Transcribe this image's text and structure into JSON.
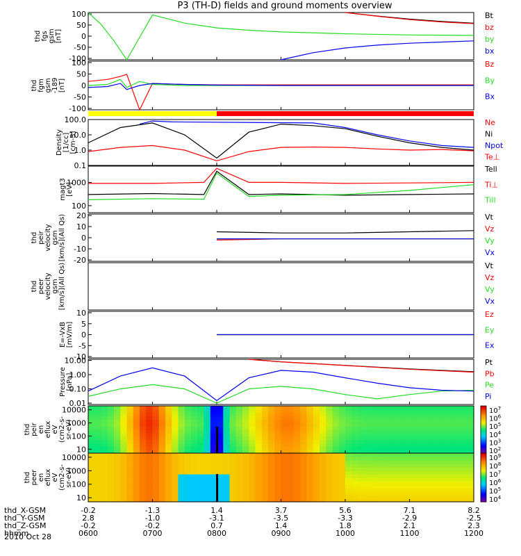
{
  "title": "P3 (TH-D) fields and ground moments overview",
  "date": "2010 Oct 28",
  "colors": {
    "black": "#000000",
    "red": "#ff0000",
    "green": "#22dd22",
    "blue": "#0000ee",
    "yellow": "#ffff00"
  },
  "ephemeris": {
    "row_labels": [
      "thd_X-GSM",
      "thd_Y-GSM",
      "thd_Z-GSM",
      "hhmm"
    ],
    "columns": [
      [
        "-0.2",
        "2.8",
        "-0.2",
        "0600"
      ],
      [
        "-1.3",
        "-1.0",
        "-0.2",
        "0700"
      ],
      [
        "1.4",
        "-3.1",
        "0.7",
        "0800"
      ],
      [
        "3.7",
        "-3.5",
        "1.4",
        "0900"
      ],
      [
        "5.6",
        "-3.3",
        "1.8",
        "1000"
      ],
      [
        "7.1",
        "-2.9",
        "2.1",
        "1100"
      ],
      [
        "8.2",
        "-2.5",
        "2.3",
        "1200"
      ]
    ]
  },
  "chart_data": [
    {
      "type": "line",
      "panel": "fgs",
      "ylabel_lines": [
        "thd",
        "fgs",
        "gsm",
        "[nT]"
      ],
      "y_ticks": [
        "100",
        "50",
        "0",
        "-50",
        "-100"
      ],
      "ylim": [
        -100,
        100
      ],
      "x_range_hours": [
        6,
        12
      ],
      "legend": [
        {
          "name": "Bt",
          "color": "#000000"
        },
        {
          "name": "bz",
          "color": "#ff0000"
        },
        {
          "name": "by",
          "color": "#22dd22"
        },
        {
          "name": "bx",
          "color": "#0000ee"
        }
      ],
      "series": [
        {
          "name": "Bt",
          "x": [
            10.0,
            10.5,
            11.0,
            11.5,
            12.0
          ],
          "values": [
            100,
            85,
            72,
            62,
            55
          ]
        },
        {
          "name": "bz",
          "x": [
            10.0,
            10.5,
            11.0,
            11.5,
            12.0
          ],
          "values": [
            100,
            84,
            70,
            60,
            53
          ]
        },
        {
          "name": "by",
          "x": [
            6.0,
            6.2,
            6.4,
            6.6,
            7.0,
            7.5,
            8.0,
            8.5,
            9.0,
            10.0,
            11.0,
            12.0
          ],
          "values": [
            100,
            50,
            -20,
            -100,
            90,
            55,
            35,
            25,
            18,
            10,
            5,
            3
          ]
        },
        {
          "name": "bx",
          "x": [
            9.0,
            9.5,
            10.0,
            10.5,
            11.0,
            11.5,
            12.0
          ],
          "values": [
            -100,
            -70,
            -50,
            -38,
            -30,
            -25,
            -20
          ]
        }
      ]
    },
    {
      "type": "line",
      "panel": "fgm",
      "ylabel_lines": [
        "thd",
        "fgm",
        "gsm",
        "-189",
        "[nT]"
      ],
      "y_ticks": [
        "100",
        "50",
        "0",
        "-50",
        "-100"
      ],
      "ylim": [
        -120,
        120
      ],
      "x_range_hours": [
        6,
        12
      ],
      "legend": [
        {
          "name": "Bz",
          "color": "#ff0000"
        },
        {
          "name": "By",
          "color": "#22dd22"
        },
        {
          "name": "Bx",
          "color": "#0000ee"
        }
      ],
      "series": [
        {
          "name": "Bz",
          "x": [
            6.0,
            6.3,
            6.5,
            6.6,
            6.8,
            7.0,
            7.5,
            8.0,
            9.0,
            10.0,
            11.0,
            12.0
          ],
          "values": [
            20,
            30,
            45,
            55,
            -120,
            10,
            5,
            3,
            3,
            3,
            3,
            3
          ]
        },
        {
          "name": "By",
          "x": [
            6.0,
            6.3,
            6.5,
            6.6,
            6.8,
            7.0,
            7.5,
            8.0,
            9.0,
            10.0,
            11.0,
            12.0
          ],
          "values": [
            0,
            5,
            30,
            -10,
            20,
            5,
            0,
            0,
            0,
            0,
            0,
            0
          ]
        },
        {
          "name": "Bx",
          "x": [
            6.0,
            6.3,
            6.5,
            6.6,
            6.8,
            7.0,
            7.5,
            8.0,
            9.0,
            10.0,
            11.0,
            12.0
          ],
          "values": [
            -10,
            -5,
            10,
            -20,
            0,
            10,
            5,
            2,
            0,
            0,
            0,
            0
          ]
        }
      ]
    },
    {
      "type": "line",
      "panel": "density",
      "ylabel_lines": [
        "Density",
        "[1/cc]",
        "[cm-3]"
      ],
      "y_ticks": [
        "100.0",
        "10.0",
        "1.0",
        "0.1"
      ],
      "ylim": [
        0.1,
        100
      ],
      "yscale": "log",
      "x_range_hours": [
        6,
        12
      ],
      "legend": [
        {
          "name": "Ne",
          "color": "#ff0000"
        },
        {
          "name": "Ni",
          "color": "#000000"
        },
        {
          "name": "Npot",
          "color": "#0000ee"
        },
        {
          "name": "Te⊥",
          "color": "#ff0000"
        }
      ],
      "series": [
        {
          "name": "Ne",
          "x": [
            6.0,
            6.5,
            7.0,
            7.5,
            8.0,
            8.5,
            9.0,
            9.5,
            10.0,
            10.5,
            11.0,
            11.5,
            12.0
          ],
          "values": [
            0.8,
            1.5,
            2.0,
            1.0,
            0.2,
            0.8,
            1.5,
            1.6,
            1.5,
            1.2,
            1.0,
            1.1,
            0.9
          ]
        },
        {
          "name": "Ni",
          "x": [
            6.0,
            6.5,
            7.0,
            7.5,
            8.0,
            8.5,
            9.0,
            9.5,
            10.0,
            10.5,
            11.0,
            11.5,
            12.0
          ],
          "values": [
            3.0,
            30,
            60,
            10,
            0.3,
            15,
            50,
            40,
            25,
            8,
            3,
            1.5,
            1.0
          ]
        },
        {
          "name": "Npot",
          "x": [
            6.8,
            7.0,
            7.3,
            9.5,
            10.0,
            10.5,
            11.0,
            11.5,
            12.0
          ],
          "values": [
            50,
            80,
            70,
            60,
            30,
            10,
            4,
            2,
            1.5
          ]
        }
      ]
    },
    {
      "type": "line",
      "panel": "temperature",
      "ylabel_lines": [
        "magt3",
        "[eV]"
      ],
      "y_ticks": [
        "1000",
        "100"
      ],
      "ylim": [
        50,
        5000
      ],
      "yscale": "log",
      "x_range_hours": [
        6,
        12
      ],
      "legend": [
        {
          "name": "Tell",
          "color": "#000000"
        },
        {
          "name": "Ti⊥",
          "color": "#ff0000"
        },
        {
          "name": "Till",
          "color": "#22dd22"
        }
      ],
      "series": [
        {
          "name": "Ti⊥",
          "x": [
            6.0,
            7.0,
            7.8,
            8.0,
            8.5,
            9.0,
            10.0,
            11.0,
            12.0
          ],
          "values": [
            900,
            900,
            1000,
            4000,
            1000,
            1000,
            900,
            950,
            1000
          ]
        },
        {
          "name": "Tell",
          "x": [
            6.0,
            7.0,
            7.8,
            8.0,
            8.5,
            9.0,
            10.0,
            11.0,
            12.0
          ],
          "values": [
            300,
            330,
            300,
            3000,
            300,
            320,
            280,
            300,
            320
          ]
        },
        {
          "name": "Till",
          "x": [
            6.0,
            7.0,
            7.8,
            8.0,
            8.5,
            9.0,
            10.0,
            11.0,
            12.0
          ],
          "values": [
            180,
            200,
            190,
            2500,
            250,
            280,
            300,
            450,
            800
          ]
        }
      ]
    },
    {
      "type": "line",
      "panel": "peir_velocity",
      "ylabel_lines": [
        "thd",
        "peir",
        "velocity",
        "gsm",
        "[km/s](All Qs)"
      ],
      "y_ticks": [
        "20",
        "10",
        "0",
        "-10",
        "-20"
      ],
      "ylim": [
        -20,
        20
      ],
      "x_range_hours": [
        6,
        12
      ],
      "legend": [
        {
          "name": "Vt",
          "color": "#000000"
        },
        {
          "name": "Vz",
          "color": "#ff0000"
        },
        {
          "name": "Vy",
          "color": "#22dd22"
        },
        {
          "name": "Vx",
          "color": "#0000ee"
        }
      ],
      "series": [
        {
          "name": "Vt",
          "x": [
            8.0,
            9.0,
            10.0,
            11.0,
            12.0
          ],
          "values": [
            5,
            4,
            4,
            5,
            6
          ]
        },
        {
          "name": "Vz",
          "x": [
            8.0,
            9.0,
            10.0,
            11.0,
            12.0
          ],
          "values": [
            -2,
            -1,
            -1,
            -1,
            -1
          ]
        },
        {
          "name": "Vy",
          "x": [
            8.0,
            9.0,
            10.0,
            11.0,
            12.0
          ],
          "values": [
            -1,
            -1,
            -1,
            -1,
            -1
          ]
        },
        {
          "name": "Vx",
          "x": [
            8.0,
            9.0,
            10.0,
            11.0,
            12.0
          ],
          "values": [
            -1,
            -1,
            -1,
            -1,
            -1
          ]
        }
      ]
    },
    {
      "type": "line",
      "panel": "peer_velocity",
      "ylabel_lines": [
        "thd",
        "peer",
        "velocity",
        "gsm",
        "[km/s](All Qs)"
      ],
      "y_ticks": [],
      "x_range_hours": [
        6,
        12
      ],
      "legend": [
        {
          "name": "Vt",
          "color": "#000000"
        },
        {
          "name": "Vz",
          "color": "#ff0000"
        },
        {
          "name": "Vy",
          "color": "#22dd22"
        },
        {
          "name": "Vx",
          "color": "#0000ee"
        }
      ],
      "series": []
    },
    {
      "type": "line",
      "panel": "efield",
      "ylabel_lines": [
        "E=-VxB",
        "[mV/m]"
      ],
      "y_ticks": [
        "10",
        "5",
        "0",
        "-5",
        "-10"
      ],
      "ylim": [
        -10,
        10
      ],
      "x_range_hours": [
        6,
        12
      ],
      "legend": [
        {
          "name": "Ez",
          "color": "#ff0000"
        },
        {
          "name": "Ey",
          "color": "#22dd22"
        },
        {
          "name": "Ex",
          "color": "#0000ee"
        }
      ],
      "series": [
        {
          "name": "Ez",
          "x": [
            8.0,
            8.5,
            9.0,
            10.0,
            11.0,
            12.0
          ],
          "values": [
            0,
            0,
            0,
            0,
            0,
            0
          ]
        },
        {
          "name": "Ey",
          "x": [
            8.0,
            8.5,
            9.0,
            10.0,
            11.0,
            12.0
          ],
          "values": [
            0,
            0,
            0,
            0,
            0,
            0
          ]
        },
        {
          "name": "Ex",
          "x": [
            8.0,
            8.5,
            9.0,
            10.0,
            11.0,
            12.0
          ],
          "values": [
            0,
            0,
            0,
            0,
            0,
            0
          ]
        }
      ]
    },
    {
      "type": "line",
      "panel": "pressure",
      "ylabel_lines": [
        "Pressure",
        "[nPa]"
      ],
      "y_ticks": [
        "10.00",
        "1.00",
        "0.10",
        "0.01"
      ],
      "ylim": [
        0.008,
        12
      ],
      "yscale": "log",
      "x_range_hours": [
        6,
        12
      ],
      "legend": [
        {
          "name": "Pt",
          "color": "#000000"
        },
        {
          "name": "Pb",
          "color": "#ff0000"
        },
        {
          "name": "Pe",
          "color": "#22dd22"
        },
        {
          "name": "Pi",
          "color": "#0000ee"
        }
      ],
      "series": [
        {
          "name": "Pt",
          "x": [
            8.5,
            9.0,
            10.0,
            11.0,
            12.0
          ],
          "values": [
            12,
            8,
            4.5,
            2.5,
            1.6
          ]
        },
        {
          "name": "Pb",
          "x": [
            8.5,
            9.0,
            10.0,
            11.0,
            12.0
          ],
          "values": [
            12,
            8,
            4.4,
            2.4,
            1.5
          ]
        },
        {
          "name": "Pe",
          "x": [
            6.0,
            6.5,
            7.0,
            7.5,
            8.0,
            8.5,
            9.0,
            9.5,
            10.0,
            10.5,
            11.0,
            11.5,
            12.0
          ],
          "values": [
            0.03,
            0.1,
            0.2,
            0.1,
            0.01,
            0.1,
            0.15,
            0.1,
            0.04,
            0.02,
            0.04,
            0.07,
            0.08
          ]
        },
        {
          "name": "Pi",
          "x": [
            6.0,
            6.5,
            7.0,
            7.5,
            8.0,
            8.5,
            9.0,
            9.5,
            10.0,
            10.5,
            11.0,
            11.5,
            12.0
          ],
          "values": [
            0.07,
            0.8,
            3.0,
            0.8,
            0.015,
            0.6,
            2.0,
            1.5,
            0.6,
            0.25,
            0.12,
            0.08,
            0.07
          ]
        }
      ]
    },
    {
      "type": "heatmap",
      "panel": "peir_eflux",
      "ylabel_lines": [
        "thd",
        "peir",
        "en",
        "eflux",
        "eV",
        "(cm2-s-",
        "sr-eV)"
      ],
      "y_ticks": [
        "10000",
        "1000",
        "100",
        "10"
      ],
      "ylim": [
        5,
        20000
      ],
      "yscale": "log",
      "x_range_hours": [
        6,
        12
      ],
      "colorbar_ticks": [
        "10^7",
        "10^6",
        "10^5",
        "10^4",
        "10^3",
        "10^2"
      ]
    },
    {
      "type": "heatmap",
      "panel": "peer_eflux",
      "ylabel_lines": [
        "thd",
        "peer",
        "en",
        "eflux",
        "eV",
        "(cm2-s-",
        "sr-eV)"
      ],
      "y_ticks": [
        "10000",
        "1000",
        "100",
        "10"
      ],
      "ylim": [
        5,
        20000
      ],
      "yscale": "log",
      "x_range_hours": [
        6,
        12
      ],
      "colorbar_ticks": [
        "10^9",
        "10^8",
        "10^7",
        "10^6",
        "10^5",
        "10^4"
      ]
    }
  ]
}
